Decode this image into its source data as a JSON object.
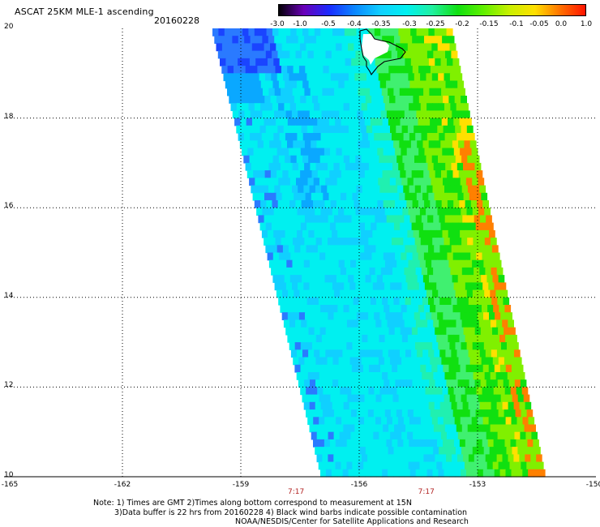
{
  "title": "ASCAT 25KM MLE-1 ascending",
  "date": "20160228",
  "colorbar": {
    "labels": [
      "-3.0",
      "-1.0",
      "-0.5",
      "-0.4",
      "-0.35",
      "-0.3",
      "-0.25",
      "-0.2",
      "-0.15",
      "-0.1",
      "-0.05",
      "0.0",
      "1.0"
    ],
    "colors": [
      "#000000",
      "#6a00b8",
      "#1a2cff",
      "#0a88ff",
      "#10d0ff",
      "#00f0f0",
      "#20f0a0",
      "#10e010",
      "#60f000",
      "#c8f000",
      "#ffe000",
      "#ff7000",
      "#ff1000"
    ]
  },
  "map": {
    "lat_labels": [
      "20",
      "18",
      "16",
      "14",
      "12",
      "10"
    ],
    "lon_labels": [
      "-165",
      "-162",
      "-159",
      "-156",
      "-153",
      "-150"
    ],
    "times": [
      "7:17",
      "7:17"
    ],
    "lat_range": [
      10,
      20
    ],
    "lon_range": [
      -165,
      -150
    ],
    "grid": "dotted",
    "swath_colors": {
      "deep_blue": "#1a44ff",
      "blue": "#2a7aff",
      "light_blue": "#0aa8ff",
      "cyan": "#10d0ff",
      "aqua": "#00f0f0",
      "seafoam": "#20f0b0",
      "green_light": "#40f070",
      "green": "#10e010",
      "lime": "#80f000",
      "yellow": "#ffe000",
      "orange": "#ff8000"
    }
  },
  "notes": [
    "Note: 1) Times are GMT 2)Times along bottom correspond to measurement at 15N",
    "3)Data buffer is 22 hrs from 20160228 4) Black wind barbs indicate possible contamination",
    "NOAA/NESDIS/Center for Satellite Applications and Research"
  ]
}
